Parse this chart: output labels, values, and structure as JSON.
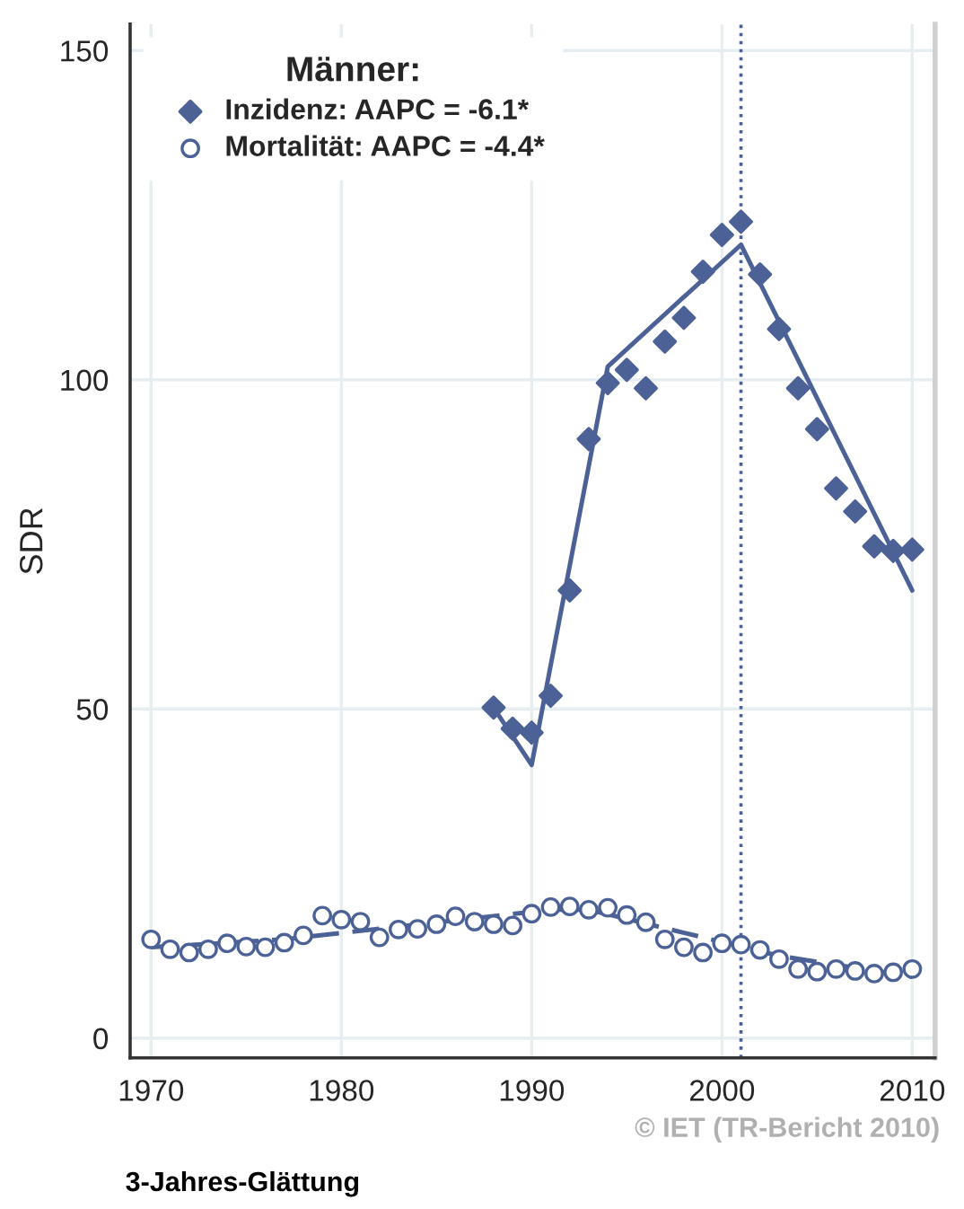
{
  "chart_data": {
    "type": "scatter",
    "ylabel": "SDR",
    "legend_title": "Männer:",
    "xlim": [
      1968.9,
      2011.2
    ],
    "ylim": [
      -3,
      154
    ],
    "xticks": [
      1970,
      1980,
      1990,
      2000,
      2010
    ],
    "yticks": [
      0,
      50,
      100,
      150
    ],
    "grid": true,
    "legend": "top left",
    "series": [
      {
        "name": "Inzidenz: AAPC = -6.1*",
        "marker": "diamond",
        "color": "#4c6297",
        "x": [
          1988,
          1989,
          1990,
          1991,
          1992,
          1993,
          1994,
          1995,
          1996,
          1997,
          1998,
          1999,
          2000,
          2001,
          2002,
          2003,
          2004,
          2005,
          2006,
          2007,
          2008,
          2009,
          2010
        ],
        "values": [
          50.2,
          47,
          46.4,
          52,
          68,
          91,
          99.5,
          101.5,
          98.7,
          105.8,
          109.4,
          116.4,
          122,
          124,
          116,
          107.7,
          98.7,
          92.5,
          83.5,
          80,
          74.7,
          74,
          74.2
        ]
      },
      {
        "name": "Mortalität: AAPC = -4.4*",
        "marker": "circle",
        "color": "#4c6297",
        "x": [
          1970,
          1971,
          1972,
          1973,
          1974,
          1975,
          1976,
          1977,
          1978,
          1979,
          1980,
          1981,
          1982,
          1983,
          1984,
          1985,
          1986,
          1987,
          1988,
          1989,
          1990,
          1991,
          1992,
          1993,
          1994,
          1995,
          1996,
          1997,
          1998,
          1999,
          2000,
          2001,
          2002,
          2003,
          2004,
          2005,
          2006,
          2007,
          2008,
          2009,
          2010
        ],
        "values": [
          15,
          13.5,
          13,
          13.5,
          14.4,
          13.9,
          13.8,
          14.5,
          15.6,
          18.6,
          18,
          17.7,
          15.3,
          16.5,
          16.6,
          17.3,
          18.5,
          17.7,
          17.3,
          17.1,
          18.9,
          19.9,
          20,
          19.5,
          19.8,
          18.7,
          17.6,
          15,
          13.8,
          13,
          14.4,
          14.2,
          13.4,
          12,
          10.5,
          10.1,
          10.5,
          10.2,
          9.8,
          10,
          10.5
        ]
      },
      {
        "type": "line",
        "line_style": "solid",
        "color": "#4c6297",
        "x": [
          1988,
          1990,
          1994,
          2001,
          2010
        ],
        "values": [
          50.2,
          41.5,
          102,
          120.5,
          68
        ]
      },
      {
        "type": "line",
        "line_style": "dashed",
        "color": "#4c6297",
        "x": [
          1970,
          1977,
          1991,
          1993,
          2003,
          2010
        ],
        "values": [
          13.8,
          15,
          19.5,
          19.5,
          12.5,
          9.3
        ]
      }
    ],
    "ref_lines": [
      {
        "axis": "x",
        "value": 2001,
        "color": "#4c6297",
        "line_style": "dotted"
      }
    ],
    "annotations": [
      "© IET (TR-Bericht 2010)",
      "3-Jahres-Glättung"
    ]
  }
}
